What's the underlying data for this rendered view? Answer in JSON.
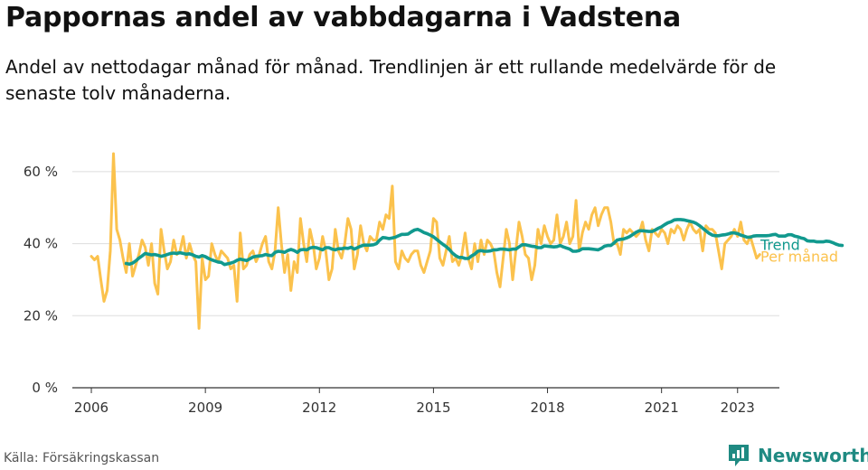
{
  "title": "Pappornas andel av vabbdagarna i Vadstena",
  "subtitle": "Andel av nettodagar månad för månad. Trendlinjen är ett rullande medelvärde för de senaste tolv månaderna.",
  "source": "Källa: Försäkringskassan",
  "brand": {
    "name": "Newsworthy",
    "icon": "newsworthy-logo-icon"
  },
  "colors": {
    "monthly": "#fbc24d",
    "trend": "#11998e",
    "grid": "#dddddd",
    "axis": "#333333",
    "brand": "#1f8a82"
  },
  "chart_data": {
    "type": "line",
    "x_axis": {
      "min": 2005.5,
      "max": 2024.1,
      "ticks": [
        2006,
        2009,
        2012,
        2015,
        2018,
        2021,
        2023
      ]
    },
    "y_axis": {
      "min": 0,
      "max": 65,
      "ticks": [
        0,
        20,
        40,
        60
      ],
      "tick_labels": [
        "0 %",
        "20 %",
        "40 %",
        "60 %"
      ],
      "grid": true
    },
    "legend": "right-end labels",
    "series": [
      {
        "name": "Per månad",
        "color": "#fbc24d",
        "start": 2006.0,
        "step_months": 1,
        "values": [
          36.5,
          35.5,
          36.5,
          30,
          24,
          27,
          38,
          65,
          44,
          41,
          36,
          32,
          40,
          31,
          34,
          37,
          41,
          39,
          34,
          40,
          29,
          26,
          44,
          38,
          33,
          35,
          41,
          37,
          38,
          42,
          36,
          40,
          37,
          35,
          16.5,
          36,
          30,
          31,
          40,
          37,
          35,
          38,
          37,
          36,
          33,
          34,
          24,
          43,
          33,
          34,
          37,
          38,
          35,
          37,
          40,
          42,
          35,
          33,
          38,
          50,
          40,
          32,
          37,
          27,
          35,
          32,
          47,
          40,
          35,
          44,
          40,
          33,
          36,
          42,
          38,
          30,
          33,
          44,
          38,
          36,
          40,
          47,
          44,
          33,
          37,
          45,
          40,
          38,
          42,
          41,
          41,
          46,
          44,
          48,
          47,
          56,
          35,
          33,
          38,
          36,
          35,
          37,
          38,
          38,
          34,
          32,
          35,
          38,
          47,
          46,
          36,
          34,
          38,
          42,
          35,
          36,
          34,
          37,
          43,
          36,
          33,
          40,
          35,
          41,
          37,
          41,
          40,
          38,
          32,
          28,
          36,
          44,
          40,
          30,
          38,
          46,
          42,
          37,
          36,
          30,
          34,
          44,
          40,
          45,
          42,
          40,
          41,
          48,
          40,
          42,
          46,
          40,
          42,
          52,
          38,
          43,
          46,
          44,
          48,
          50,
          45,
          48,
          50,
          50,
          46,
          40,
          40,
          37,
          44,
          43,
          44,
          43,
          42,
          43,
          46,
          41,
          38,
          44,
          43,
          42,
          44,
          43,
          40,
          44,
          43,
          45,
          44,
          41,
          44,
          46,
          44,
          43,
          44,
          38,
          45,
          44,
          44,
          43,
          38,
          33,
          40,
          41,
          42,
          44,
          42,
          46,
          41,
          40,
          42,
          39,
          36,
          37
        ]
      },
      {
        "name": "Trend",
        "color": "#11998e",
        "start": 2006.917,
        "step_months": 1,
        "values": [
          34.5,
          34.3,
          34.6,
          35.2,
          36,
          36.6,
          37.3,
          37.1,
          36.9,
          37,
          36.8,
          36.5,
          36.7,
          37,
          37.3,
          37.4,
          37.3,
          37.5,
          37.3,
          37.1,
          37.2,
          36.9,
          36.5,
          36.3,
          36.7,
          36.4,
          35.9,
          35.5,
          35.2,
          34.9,
          34.8,
          34.2,
          34.4,
          34.6,
          34.9,
          35.4,
          35.7,
          35.5,
          35.3,
          35.8,
          36.3,
          36.5,
          36.6,
          36.7,
          37,
          36.8,
          36.7,
          37.6,
          37.9,
          37.8,
          37.6,
          38.1,
          38.4,
          38.1,
          37.6,
          38.3,
          38.4,
          38.3,
          38.8,
          39,
          38.9,
          38.6,
          38.3,
          38.9,
          38.9,
          38.5,
          38.3,
          38.6,
          38.6,
          38.8,
          38.7,
          39,
          38.5,
          38.9,
          39.3,
          39.6,
          39.6,
          39.6,
          39.7,
          40,
          41,
          41.7,
          41.6,
          41.4,
          41.6,
          41.8,
          42.2,
          42.6,
          42.6,
          42.7,
          43.3,
          43.8,
          44,
          43.6,
          43.1,
          42.8,
          42.4,
          41.9,
          41.2,
          40.5,
          39.8,
          39.2,
          38.4,
          37.4,
          36.7,
          36.2,
          36.2,
          35.9,
          35.9,
          36.6,
          37.1,
          37.9,
          38.1,
          37.9,
          37.9,
          38,
          38.3,
          38.3,
          38.5,
          38.5,
          38.4,
          38.3,
          38.5,
          38.5,
          39.1,
          39.7,
          39.7,
          39.5,
          39.3,
          39.2,
          38.9,
          38.9,
          39.4,
          39.3,
          39.2,
          39.1,
          39.2,
          39.5,
          39.1,
          38.8,
          38.5,
          37.9,
          37.9,
          38.1,
          38.6,
          38.6,
          38.6,
          38.5,
          38.4,
          38.3,
          38.7,
          39.3,
          39.5,
          39.5,
          40.2,
          41,
          41.2,
          41.3,
          41.6,
          42,
          42.6,
          43.2,
          43.6,
          43.6,
          43.5,
          43.4,
          43.4,
          43.8,
          44.3,
          44.7,
          45.3,
          45.8,
          46.1,
          46.6,
          46.7,
          46.7,
          46.6,
          46.4,
          46.2,
          46,
          45.6,
          45,
          44.3,
          43.6,
          42.9,
          42.4,
          42.2,
          42.2,
          42.4,
          42.5,
          42.7,
          43,
          43,
          42.8,
          42.4,
          42.1,
          41.8,
          41.8,
          42.1,
          42.2,
          42.2,
          42.2,
          42.2,
          42.3,
          42.5,
          42.6,
          42.1,
          42.1,
          42.1,
          42.5,
          42.5,
          42.1,
          41.9,
          41.6,
          41.4,
          40.8,
          40.7,
          40.7,
          40.5,
          40.5,
          40.5,
          40.7,
          40.6,
          40.3,
          39.9,
          39.6,
          39.5
        ]
      }
    ]
  }
}
